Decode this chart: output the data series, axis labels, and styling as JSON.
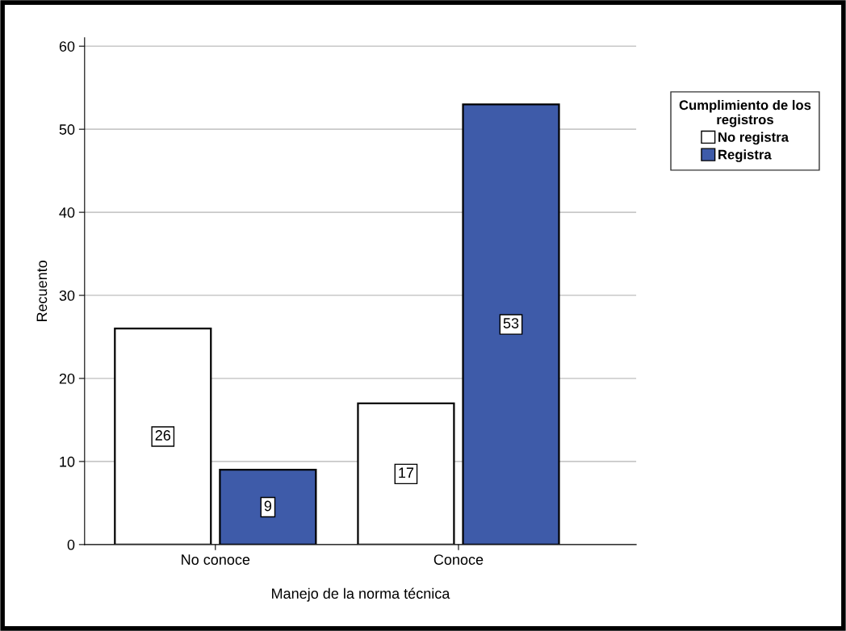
{
  "chart_data": {
    "type": "bar",
    "xlabel": "Manejo de la norma técnica",
    "ylabel": "Recuento",
    "legend_title": "Cumplimiento de los\nregistros",
    "categories": [
      "No conoce",
      "Conoce"
    ],
    "series": [
      {
        "name": "No registra",
        "color": "#ffffff",
        "values": [
          26,
          17
        ]
      },
      {
        "name": "Registra",
        "color": "#3e5ba9",
        "values": [
          9,
          53
        ]
      }
    ],
    "ylim": [
      0,
      61
    ],
    "yticks": [
      0,
      10,
      20,
      30,
      40,
      50,
      60
    ],
    "grid": "y",
    "legend": "right",
    "data_labels": true
  }
}
